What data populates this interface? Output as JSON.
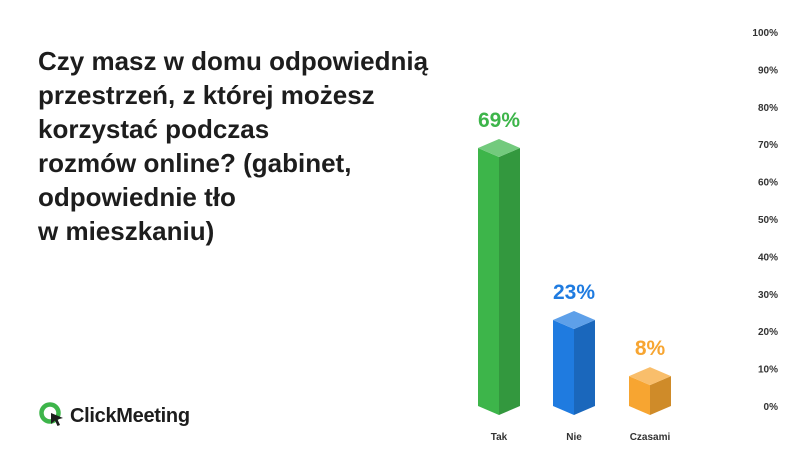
{
  "title_lines": [
    "Czy masz w domu odpowiednią",
    "przestrzeń, z której możesz",
    "korzystać podczas",
    "rozmów online? (gabinet,",
    "odpowiednie tło",
    "w mieszkaniu)"
  ],
  "logo": {
    "text": "ClickMeeting",
    "icon": "clickmeeting-logo-icon",
    "color": "#3db54a"
  },
  "chart_data": {
    "type": "bar",
    "title": "Czy masz w domu odpowiednią przestrzeń, z której możesz korzystać podczas rozmów online? (gabinet, odpowiednie tło w mieszkaniu)",
    "categories": [
      "Tak",
      "Nie",
      "Czasami"
    ],
    "values": [
      69,
      23,
      8
    ],
    "data_labels": [
      "69%",
      "23%",
      "8%"
    ],
    "colors": [
      "#3db54a",
      "#1f7be0",
      "#f7a531"
    ],
    "yticks": [
      "0%",
      "10%",
      "20%",
      "30%",
      "40%",
      "50%",
      "60%",
      "70%",
      "80%",
      "90%",
      "100%"
    ],
    "ylim": [
      0,
      100
    ],
    "grid": false,
    "legend": "none",
    "style": "3d-columns",
    "ylabel": "",
    "xlabel": ""
  }
}
